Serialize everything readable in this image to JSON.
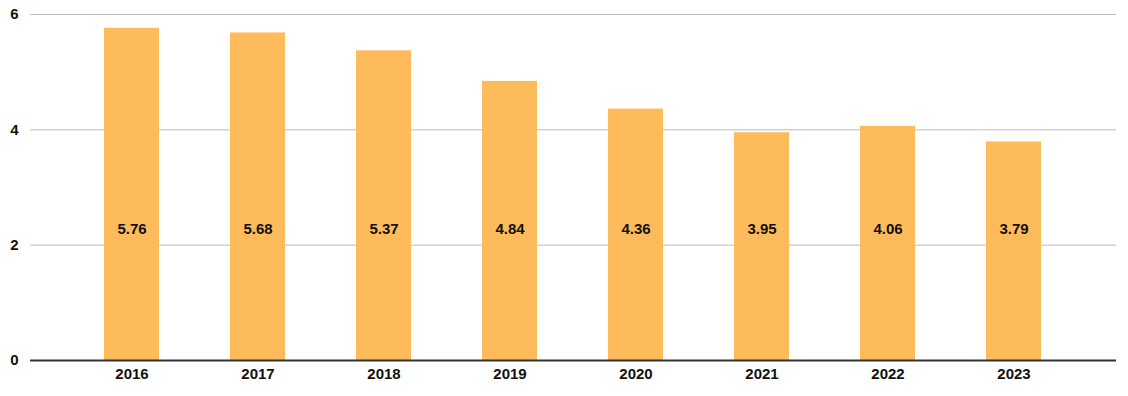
{
  "chart_data": {
    "type": "bar",
    "categories": [
      "2016",
      "2017",
      "2018",
      "2019",
      "2020",
      "2021",
      "2022",
      "2023"
    ],
    "values": [
      5.76,
      5.68,
      5.37,
      4.84,
      4.36,
      3.95,
      4.06,
      3.79
    ],
    "color": "#FDBB5B",
    "ylim": [
      0,
      6
    ],
    "yticks": [
      0,
      2,
      4,
      6
    ],
    "grid": true,
    "data_labels": true
  }
}
